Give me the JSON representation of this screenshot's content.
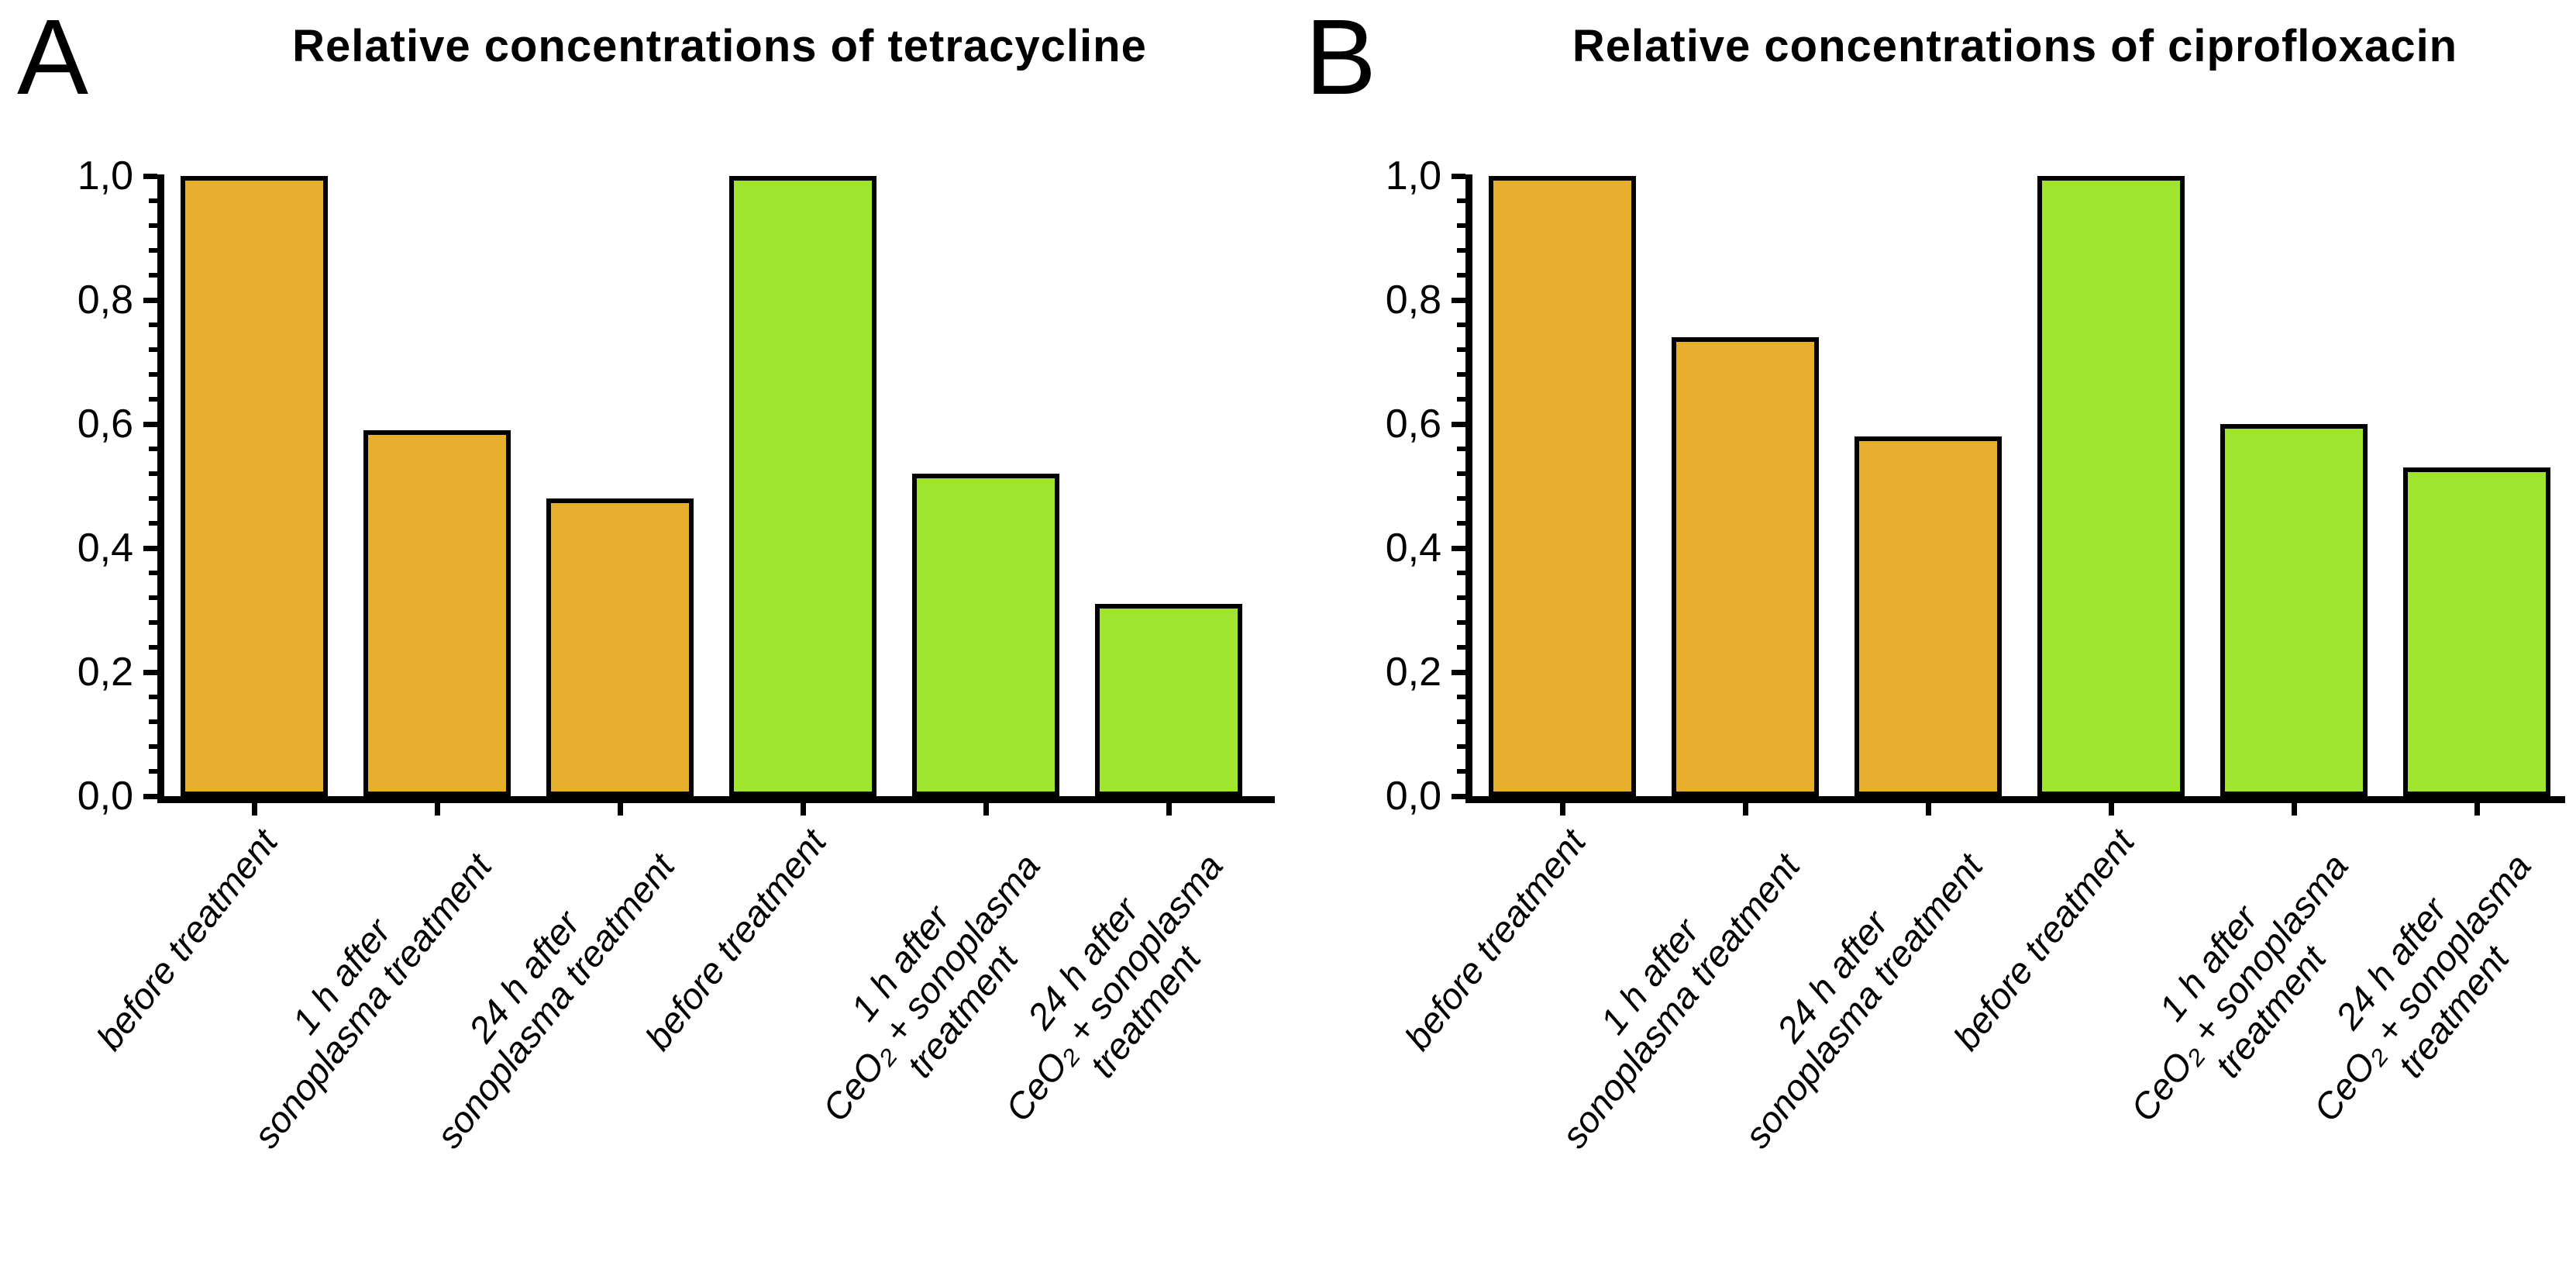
{
  "figure": {
    "background": "#ffffff",
    "axis_color": "#000000",
    "text_color": "#000000",
    "bar_palette": {
      "orange": "#E8AE2E",
      "green": "#9FE52F"
    }
  },
  "chart_data": [
    {
      "type": "bar",
      "panel_letter": "A",
      "title": "Relative concentrations of tetracycline",
      "categories": [
        "before treatment",
        "1 h after sonoplasma treatment",
        "24 h after sonoplasma treatment",
        "before treatment",
        "1 h after CeO₂ + sonoplasma treatment",
        "24 h after CeO₂ + sonoplasma treatment"
      ],
      "category_lines": [
        [
          "before treatment"
        ],
        [
          "1 h after",
          "sonoplasma treatment"
        ],
        [
          "24 h after",
          "sonoplasma treatment"
        ],
        [
          "before treatment"
        ],
        [
          "1 h after",
          "CeO₂ + sonoplasma",
          "treatment"
        ],
        [
          "24 h after",
          "CeO₂ + sonoplasma",
          "treatment"
        ]
      ],
      "values": [
        1.0,
        0.59,
        0.48,
        1.0,
        0.52,
        0.31
      ],
      "bar_colors": [
        "orange",
        "orange",
        "orange",
        "green",
        "green",
        "green"
      ],
      "xlabel": "",
      "ylabel": "",
      "ylim": [
        0.0,
        1.0
      ],
      "ytick_values": [
        0.0,
        0.2,
        0.4,
        0.6,
        0.8,
        1.0
      ],
      "ytick_labels": [
        "0,0",
        "0,2",
        "0,4",
        "0,6",
        "0,8",
        "1,0"
      ],
      "minor_tick_step": 0.04,
      "grid": false,
      "legend": null
    },
    {
      "type": "bar",
      "panel_letter": "B",
      "title": "Relative concentrations of ciprofloxacin",
      "categories": [
        "before treatment",
        "1 h after sonoplasma treatment",
        "24 h after sonoplasma treatment",
        "before treatment",
        "1 h after CeO₂ + sonoplasma treatment",
        "24 h after CeO₂ + sonoplasma treatment"
      ],
      "category_lines": [
        [
          "before treatment"
        ],
        [
          "1 h after",
          "sonoplasma treatment"
        ],
        [
          "24 h after",
          "sonoplasma treatment"
        ],
        [
          "before treatment"
        ],
        [
          "1 h after",
          "CeO₂ + sonoplasma",
          "treatment"
        ],
        [
          "24 h after",
          "CeO₂ + sonoplasma",
          "treatment"
        ]
      ],
      "values": [
        1.0,
        0.74,
        0.58,
        1.0,
        0.6,
        0.53
      ],
      "bar_colors": [
        "orange",
        "orange",
        "orange",
        "green",
        "green",
        "green"
      ],
      "xlabel": "",
      "ylabel": "",
      "ylim": [
        0.0,
        1.0
      ],
      "ytick_values": [
        0.0,
        0.2,
        0.4,
        0.6,
        0.8,
        1.0
      ],
      "ytick_labels": [
        "0,0",
        "0,2",
        "0,4",
        "0,6",
        "0,8",
        "1,0"
      ],
      "minor_tick_step": 0.04,
      "grid": false,
      "legend": null
    }
  ]
}
